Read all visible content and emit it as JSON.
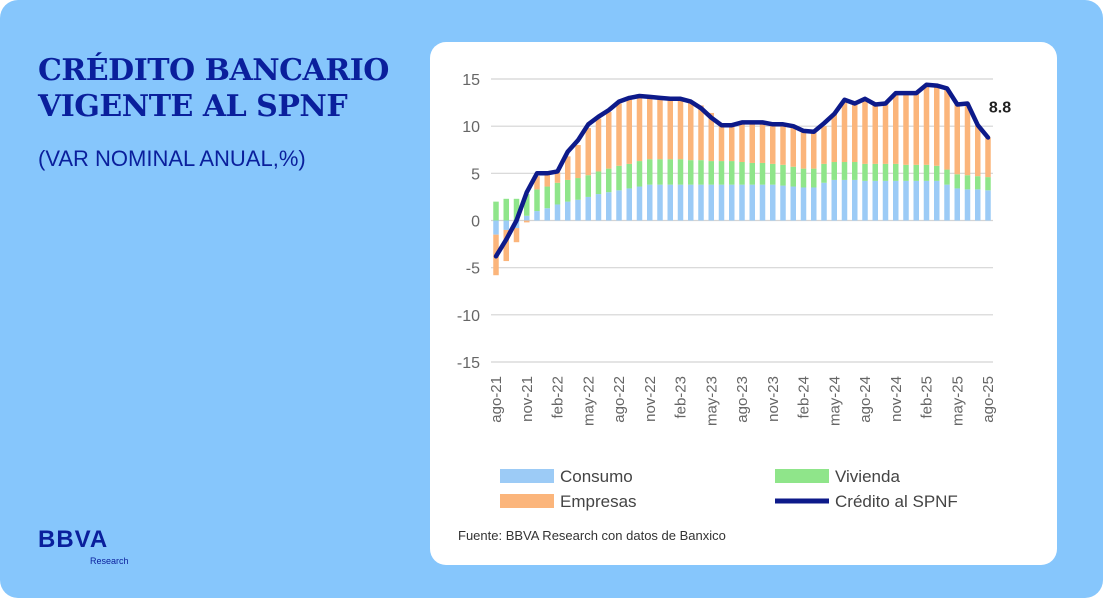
{
  "header": {
    "title_line1": "CRÉDITO BANCARIO",
    "title_line2": "VIGENTE AL SPNF",
    "subtitle": "(VAR NOMINAL ANUAL,%)"
  },
  "brand": {
    "name": "BBVA",
    "unit": "Research"
  },
  "source": "Fuente: BBVA Research con datos de Banxico",
  "colors": {
    "background": "#86c6fc",
    "title": "#0a1f9c",
    "consumo": "#9ccbf6",
    "vivienda": "#8fe58a",
    "empresas": "#fbb57b",
    "credito": "#0d1a8a"
  },
  "chart_data": {
    "type": "bar",
    "stacked": true,
    "title": "",
    "xlabel": "",
    "ylabel": "",
    "ylim": [
      -15,
      15
    ],
    "yticks": [
      15,
      10,
      5,
      0,
      -5,
      -10,
      -15
    ],
    "grid": true,
    "categories": [
      "ago-21",
      "sep-21",
      "oct-21",
      "nov-21",
      "dic-21",
      "ene-22",
      "feb-22",
      "mar-22",
      "abr-22",
      "may-22",
      "jun-22",
      "jul-22",
      "ago-22",
      "sep-22",
      "oct-22",
      "nov-22",
      "dic-22",
      "ene-23",
      "feb-23",
      "mar-23",
      "abr-23",
      "may-23",
      "jun-23",
      "jul-23",
      "ago-23",
      "sep-23",
      "oct-23",
      "nov-23",
      "dic-23",
      "ene-24",
      "feb-24",
      "mar-24",
      "abr-24",
      "may-24",
      "jun-24",
      "jul-24",
      "ago-24",
      "sep-24",
      "oct-24",
      "nov-24",
      "dic-24",
      "ene-25",
      "feb-25",
      "mar-25",
      "abr-25",
      "may-25",
      "jun-25",
      "jul-25",
      "ago-25"
    ],
    "x_tick_labels": [
      "ago-21",
      "nov-21",
      "feb-22",
      "may-22",
      "ago-22",
      "nov-22",
      "feb-23",
      "may-23",
      "ago-23",
      "nov-23",
      "feb-24",
      "may-24",
      "ago-24",
      "nov-24",
      "feb-25",
      "may-25",
      "ago-25"
    ],
    "series": [
      {
        "name": "Consumo",
        "kind": "bar",
        "values": [
          -1.5,
          -1.0,
          -0.8,
          0.5,
          1.0,
          1.3,
          1.7,
          2.0,
          2.2,
          2.5,
          2.8,
          3.0,
          3.2,
          3.4,
          3.6,
          3.8,
          3.8,
          3.8,
          3.8,
          3.8,
          3.8,
          3.8,
          3.8,
          3.8,
          3.8,
          3.8,
          3.8,
          3.8,
          3.7,
          3.6,
          3.5,
          3.5,
          4.0,
          4.3,
          4.3,
          4.3,
          4.2,
          4.2,
          4.2,
          4.2,
          4.2,
          4.2,
          4.2,
          4.2,
          3.8,
          3.4,
          3.3,
          3.3,
          3.2
        ]
      },
      {
        "name": "Vivienda",
        "kind": "bar",
        "values": [
          2.0,
          2.3,
          2.3,
          2.3,
          2.3,
          2.3,
          2.3,
          2.3,
          2.3,
          2.3,
          2.4,
          2.5,
          2.6,
          2.6,
          2.7,
          2.7,
          2.7,
          2.7,
          2.7,
          2.6,
          2.6,
          2.5,
          2.5,
          2.5,
          2.4,
          2.3,
          2.3,
          2.2,
          2.2,
          2.1,
          2.0,
          2.0,
          2.0,
          1.9,
          1.9,
          1.9,
          1.8,
          1.8,
          1.8,
          1.8,
          1.7,
          1.7,
          1.7,
          1.6,
          1.6,
          1.5,
          1.5,
          1.4,
          1.4
        ]
      },
      {
        "name": "Empresas",
        "kind": "bar",
        "values": [
          -4.3,
          -3.3,
          -1.5,
          -0.2,
          1.4,
          1.4,
          1.1,
          2.5,
          3.5,
          5.0,
          5.6,
          6.0,
          6.6,
          6.9,
          6.9,
          6.6,
          6.5,
          6.4,
          6.4,
          6.2,
          5.8,
          5.1,
          4.0,
          3.8,
          4.2,
          4.3,
          4.3,
          4.2,
          4.3,
          4.3,
          4.0,
          3.9,
          4.0,
          5.1,
          6.6,
          6.2,
          6.9,
          6.3,
          6.4,
          7.5,
          7.6,
          7.6,
          8.5,
          8.5,
          8.6,
          7.4,
          7.6,
          5.4,
          4.2
        ]
      },
      {
        "name": "Crédito al SPNF",
        "kind": "line",
        "values": [
          -3.8,
          -2.0,
          0.0,
          3.0,
          5.0,
          5.0,
          5.2,
          7.3,
          8.5,
          10.2,
          11.0,
          11.7,
          12.6,
          13.0,
          13.2,
          13.1,
          13.0,
          12.9,
          12.9,
          12.6,
          11.9,
          10.9,
          10.1,
          10.1,
          10.4,
          10.4,
          10.4,
          10.2,
          10.2,
          10.0,
          9.5,
          9.4,
          10.3,
          11.3,
          12.8,
          12.4,
          12.9,
          12.3,
          12.4,
          13.5,
          13.5,
          13.5,
          14.4,
          14.3,
          14.0,
          12.3,
          12.4,
          10.1,
          8.8
        ]
      }
    ],
    "annotations": [
      {
        "series": "Crédito al SPNF",
        "point": "ago-25",
        "text": "8.8"
      }
    ],
    "legend": {
      "placement": "bottom",
      "entries": [
        "Consumo",
        "Vivienda",
        "Empresas",
        "Crédito al SPNF"
      ]
    }
  }
}
